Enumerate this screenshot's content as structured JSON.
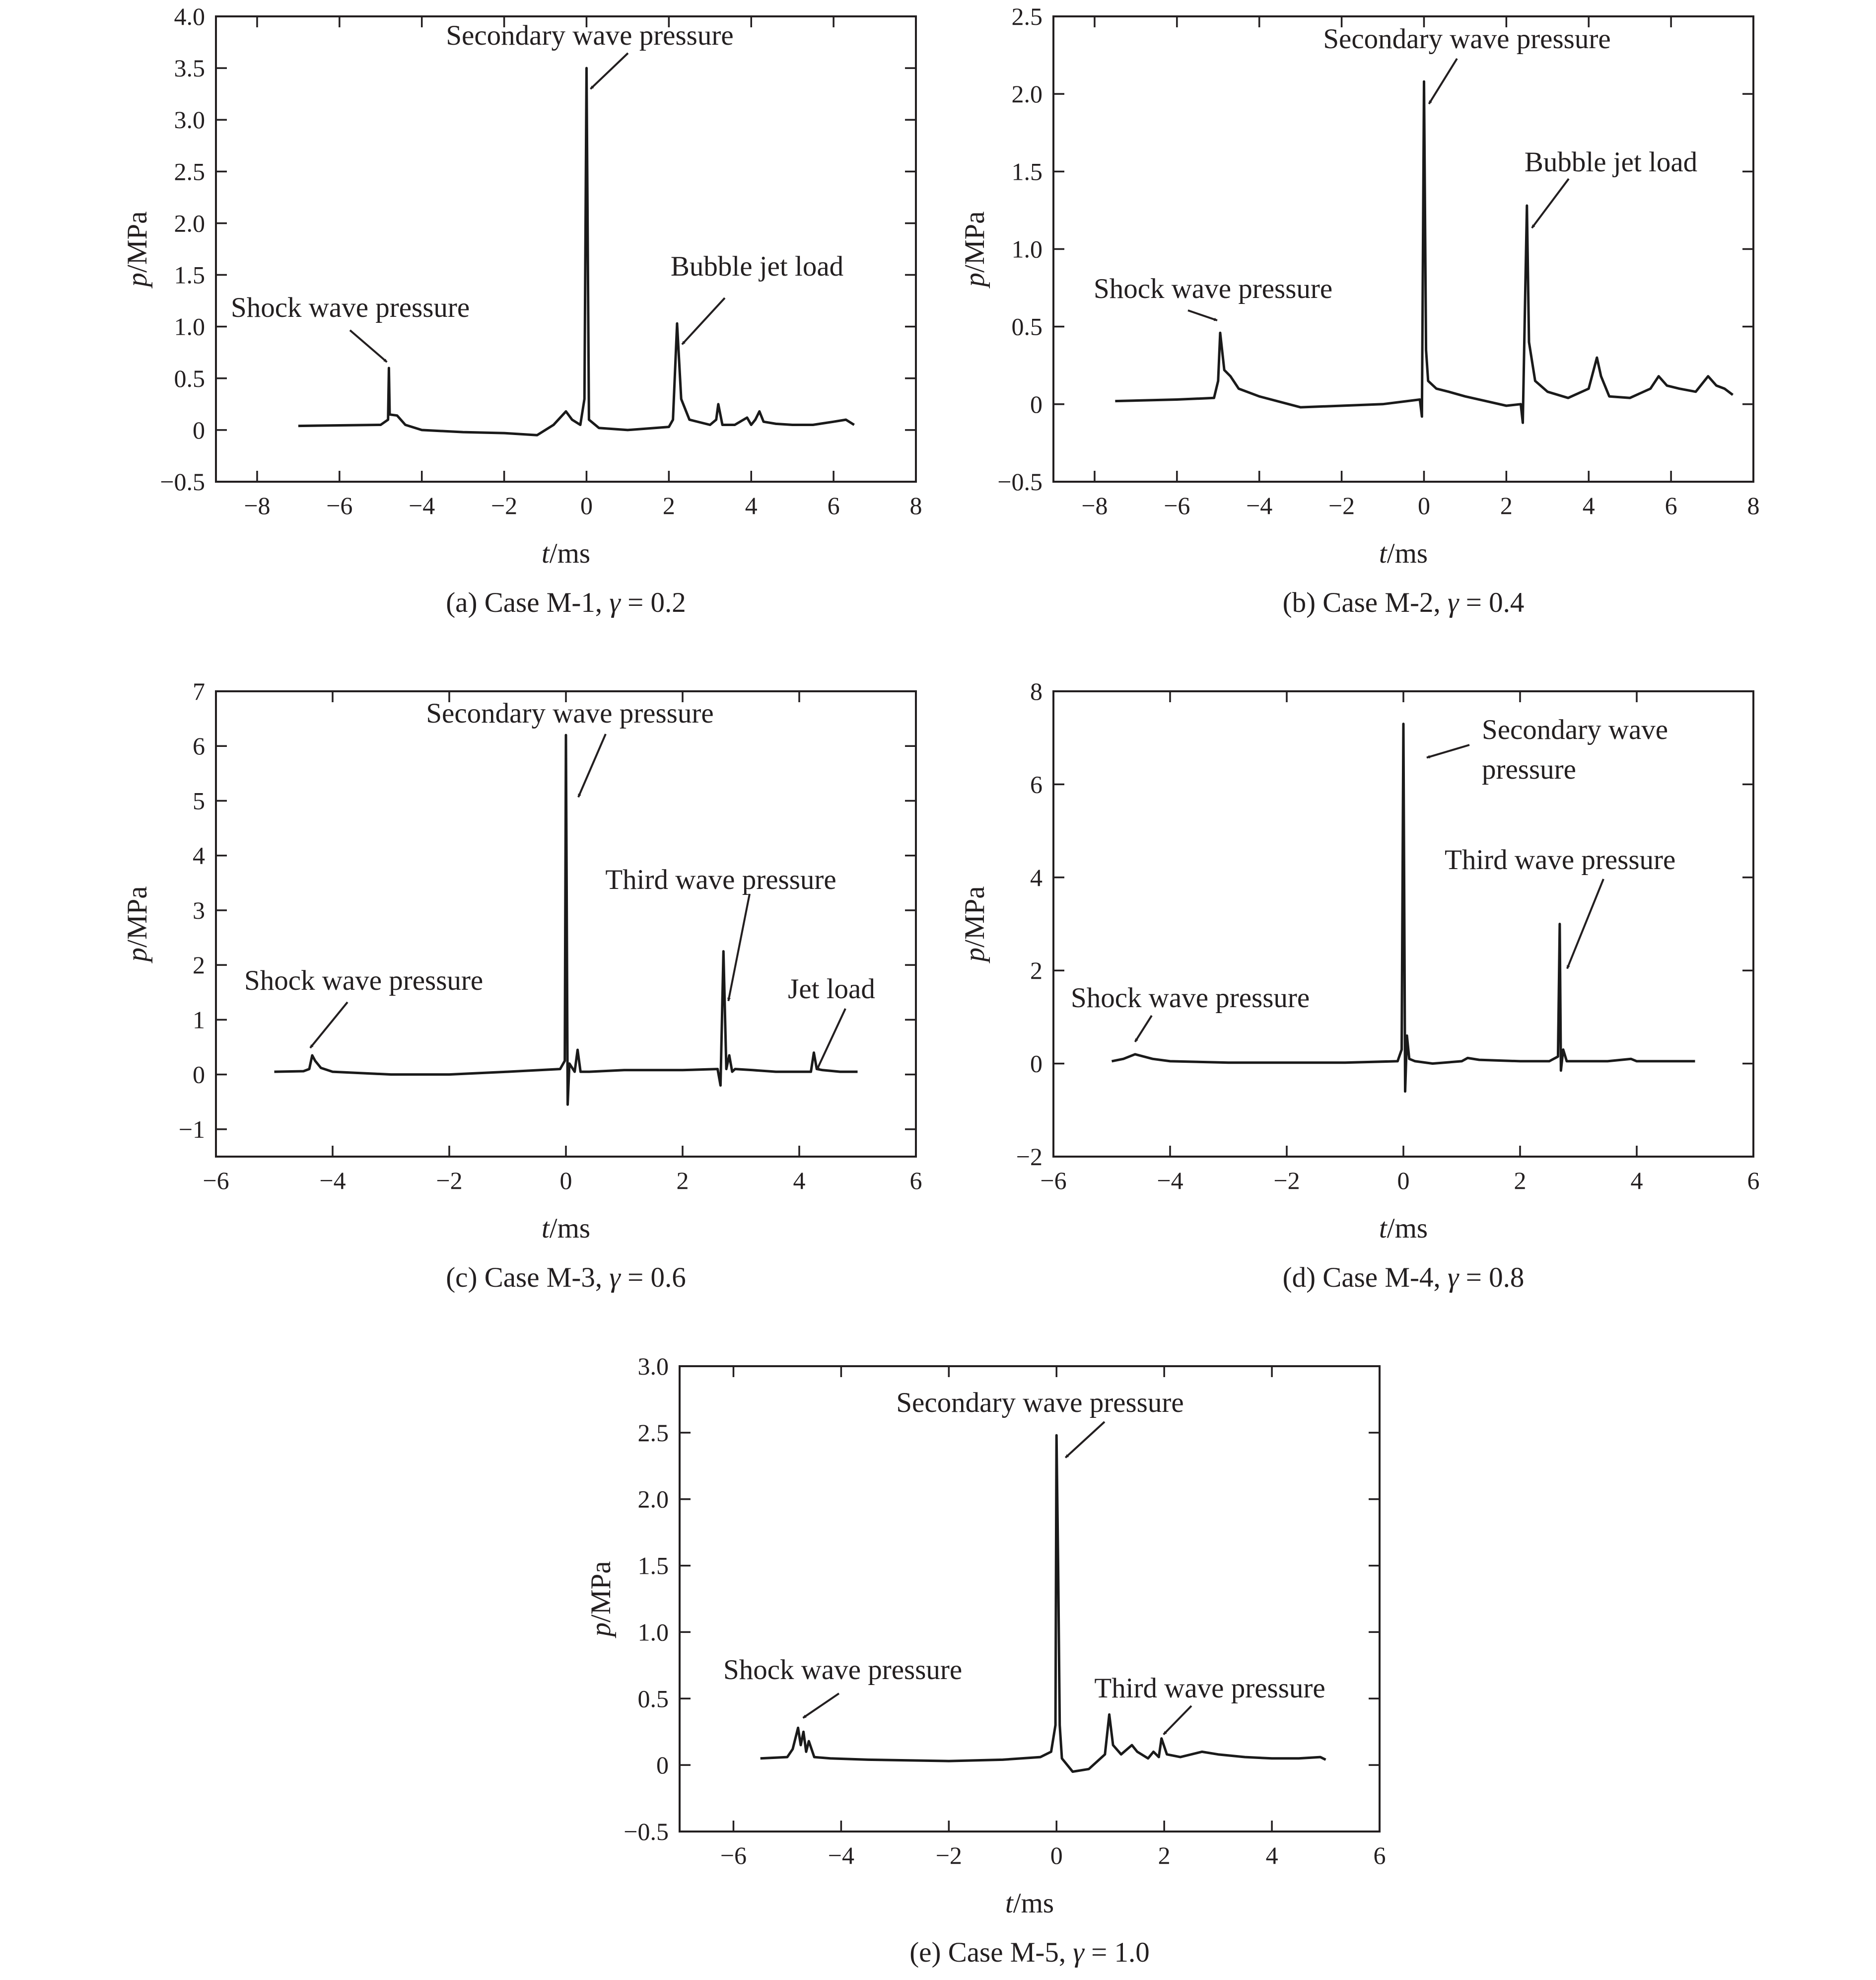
{
  "chart_data": [
    {
      "type": "line",
      "caption": "(a) Case M-1, γ = 0.2",
      "caption_parts": [
        "(a) Case M-1, ",
        "γ",
        " = 0.2"
      ],
      "xlabel_parts": [
        "t",
        "/ms"
      ],
      "ylabel_parts": [
        "p",
        "/MPa"
      ],
      "xlim": [
        -9,
        8
      ],
      "ylim": [
        -0.5,
        4.0
      ],
      "xticks": [
        -8,
        -6,
        -4,
        -2,
        0,
        2,
        4,
        6,
        8
      ],
      "xtick_labels": [
        "−8",
        "−6",
        "−4",
        "−2",
        "0",
        "2",
        "4",
        "6",
        "8"
      ],
      "yticks": [
        -0.5,
        0,
        0.5,
        1.0,
        1.5,
        2.0,
        2.5,
        3.0,
        3.5,
        4.0
      ],
      "ytick_labels": [
        "−0.5",
        "0",
        "0.5",
        "1.0",
        "1.5",
        "2.0",
        "2.5",
        "3.0",
        "3.5",
        "4.0"
      ],
      "series": [
        {
          "x": [
            -7.0,
            -5.0,
            -4.82,
            -4.8,
            -4.78,
            -4.6,
            -4.4,
            -4.0,
            -3.0,
            -2.0,
            -1.2,
            -0.8,
            -0.5,
            -0.35,
            -0.15,
            -0.05,
            0.0,
            0.06,
            0.3,
            1.0,
            2.0,
            2.1,
            2.2,
            2.3,
            2.5,
            3.0,
            3.15,
            3.2,
            3.3,
            3.6,
            3.9,
            4.0,
            4.1,
            4.2,
            4.3,
            4.6,
            5.0,
            5.5,
            6.0,
            6.3,
            6.5
          ],
          "y": [
            0.04,
            0.05,
            0.1,
            0.6,
            0.15,
            0.14,
            0.05,
            0.0,
            -0.02,
            -0.03,
            -0.05,
            0.05,
            0.18,
            0.1,
            0.05,
            0.3,
            3.5,
            0.1,
            0.02,
            0.0,
            0.03,
            0.1,
            1.03,
            0.3,
            0.1,
            0.05,
            0.1,
            0.25,
            0.05,
            0.05,
            0.12,
            0.05,
            0.1,
            0.18,
            0.08,
            0.06,
            0.05,
            0.05,
            0.08,
            0.1,
            0.05
          ]
        }
      ],
      "annotations": [
        {
          "text": "Shock wave pressure",
          "x": -4.8,
          "y": 0.6
        },
        {
          "text": "Secondary wave pressure",
          "x": 0.0,
          "y": 3.5
        },
        {
          "text": "Bubble jet load",
          "x": 2.2,
          "y": 1.03
        }
      ]
    },
    {
      "type": "line",
      "caption": "(b) Case M-2, γ = 0.4",
      "caption_parts": [
        "(b) Case M-2, ",
        "γ",
        " = 0.4"
      ],
      "xlabel_parts": [
        "t",
        "/ms"
      ],
      "ylabel_parts": [
        "p",
        "/MPa"
      ],
      "xlim": [
        -9,
        8
      ],
      "ylim": [
        -0.5,
        2.5
      ],
      "xticks": [
        -8,
        -6,
        -4,
        -2,
        0,
        2,
        4,
        6,
        8
      ],
      "xtick_labels": [
        "−8",
        "−6",
        "−4",
        "−2",
        "0",
        "2",
        "4",
        "6",
        "8"
      ],
      "yticks": [
        -0.5,
        0,
        0.5,
        1.0,
        1.5,
        2.0,
        2.5
      ],
      "ytick_labels": [
        "−0.5",
        "0",
        "0.5",
        "1.0",
        "1.5",
        "2.0",
        "2.5"
      ],
      "series": [
        {
          "x": [
            -7.5,
            -6.0,
            -5.1,
            -5.0,
            -4.95,
            -4.85,
            -4.7,
            -4.5,
            -4.0,
            -3.0,
            -2.0,
            -1.0,
            -0.1,
            -0.05,
            0.0,
            0.05,
            0.1,
            0.3,
            0.6,
            1.0,
            1.5,
            2.0,
            2.35,
            2.4,
            2.45,
            2.5,
            2.55,
            2.7,
            3.0,
            3.5,
            4.0,
            4.2,
            4.3,
            4.5,
            5.0,
            5.5,
            5.7,
            5.9,
            6.2,
            6.6,
            6.9,
            7.1,
            7.3,
            7.5
          ],
          "y": [
            0.02,
            0.03,
            0.04,
            0.15,
            0.46,
            0.22,
            0.18,
            0.1,
            0.05,
            -0.02,
            -0.01,
            0.0,
            0.03,
            -0.08,
            2.08,
            0.35,
            0.15,
            0.1,
            0.08,
            0.05,
            0.02,
            -0.01,
            0.0,
            -0.12,
            0.6,
            1.28,
            0.4,
            0.15,
            0.08,
            0.04,
            0.1,
            0.3,
            0.18,
            0.05,
            0.04,
            0.1,
            0.18,
            0.12,
            0.1,
            0.08,
            0.18,
            0.12,
            0.1,
            0.06
          ]
        }
      ],
      "annotations": [
        {
          "text": "Shock wave pressure",
          "x": -4.95,
          "y": 0.46
        },
        {
          "text": "Secondary wave pressure",
          "x": 0.0,
          "y": 2.08
        },
        {
          "text": "Bubble jet load",
          "x": 2.5,
          "y": 1.28
        }
      ]
    },
    {
      "type": "line",
      "caption": "(c) Case M-3, γ = 0.6",
      "caption_parts": [
        "(c) Case M-3, ",
        "γ",
        " = 0.6"
      ],
      "xlabel_parts": [
        "t",
        "/ms"
      ],
      "ylabel_parts": [
        "p",
        "/MPa"
      ],
      "xlim": [
        -6,
        6
      ],
      "ylim": [
        -1.5,
        7
      ],
      "xticks": [
        -6,
        -4,
        -2,
        0,
        2,
        4,
        6
      ],
      "xtick_labels": [
        "−6",
        "−4",
        "−2",
        "0",
        "2",
        "4",
        "6"
      ],
      "yticks": [
        -1,
        0,
        1,
        2,
        3,
        4,
        5,
        6,
        7
      ],
      "ytick_labels": [
        "−1",
        "0",
        "1",
        "2",
        "3",
        "4",
        "5",
        "6",
        "7"
      ],
      "series": [
        {
          "x": [
            -5.0,
            -4.5,
            -4.4,
            -4.35,
            -4.3,
            -4.2,
            -4.0,
            -3.0,
            -2.0,
            -1.0,
            -0.1,
            -0.02,
            0.0,
            0.03,
            0.06,
            0.15,
            0.2,
            0.25,
            0.4,
            1.0,
            2.0,
            2.6,
            2.65,
            2.7,
            2.75,
            2.8,
            2.85,
            2.9,
            3.2,
            3.6,
            4.0,
            4.2,
            4.25,
            4.3,
            4.4,
            4.7,
            5.0
          ],
          "y": [
            0.05,
            0.06,
            0.1,
            0.35,
            0.25,
            0.12,
            0.05,
            0.0,
            0.0,
            0.05,
            0.1,
            0.25,
            6.2,
            -0.55,
            0.2,
            0.05,
            0.45,
            0.05,
            0.05,
            0.08,
            0.08,
            0.1,
            -0.2,
            2.25,
            0.1,
            0.35,
            0.05,
            0.1,
            0.08,
            0.05,
            0.05,
            0.05,
            0.4,
            0.1,
            0.08,
            0.05,
            0.05
          ]
        }
      ],
      "annotations": [
        {
          "text": "Shock wave pressure",
          "x": -4.35,
          "y": 0.35
        },
        {
          "text": "Secondary wave pressure",
          "x": 0.0,
          "y": 6.2
        },
        {
          "text": "Third wave pressure",
          "x": 2.7,
          "y": 2.25
        },
        {
          "text": "Jet load",
          "x": 4.25,
          "y": 0.4
        }
      ]
    },
    {
      "type": "line",
      "caption": "(d) Case M-4, γ = 0.8",
      "caption_parts": [
        "(d) Case M-4, ",
        "γ",
        " = 0.8"
      ],
      "xlabel_parts": [
        "t",
        "/ms"
      ],
      "ylabel_parts": [
        "p",
        "/MPa"
      ],
      "xlim": [
        -6,
        6
      ],
      "ylim": [
        -2,
        8
      ],
      "xticks": [
        -6,
        -4,
        -2,
        0,
        2,
        4,
        6
      ],
      "xtick_labels": [
        "−6",
        "−4",
        "−2",
        "0",
        "2",
        "4",
        "6"
      ],
      "yticks": [
        -2,
        0,
        2,
        4,
        6,
        8
      ],
      "ytick_labels": [
        "−2",
        "0",
        "2",
        "4",
        "6",
        "8"
      ],
      "series": [
        {
          "x": [
            -5.0,
            -4.8,
            -4.6,
            -4.3,
            -4.0,
            -3.0,
            -2.0,
            -1.0,
            -0.1,
            -0.03,
            0.0,
            0.03,
            0.06,
            0.1,
            0.2,
            0.5,
            1.0,
            1.1,
            1.3,
            2.0,
            2.5,
            2.65,
            2.68,
            2.7,
            2.74,
            2.8,
            3.0,
            3.5,
            3.9,
            4.0,
            4.5,
            5.0
          ],
          "y": [
            0.05,
            0.1,
            0.2,
            0.1,
            0.05,
            0.02,
            0.02,
            0.02,
            0.05,
            0.3,
            7.3,
            -0.6,
            0.6,
            0.1,
            0.05,
            0.0,
            0.05,
            0.12,
            0.08,
            0.05,
            0.05,
            0.15,
            3.0,
            -0.15,
            0.3,
            0.05,
            0.05,
            0.05,
            0.1,
            0.05,
            0.05,
            0.05
          ]
        }
      ],
      "annotations": [
        {
          "text": "Shock wave pressure",
          "x": -4.6,
          "y": 0.2
        },
        {
          "text": "Secondary wave pressure",
          "lines": [
            "Secondary wave",
            "pressure"
          ],
          "x": 0.0,
          "y": 7.3
        },
        {
          "text": "Third wave pressure",
          "x": 2.68,
          "y": 3.0
        }
      ]
    },
    {
      "type": "line",
      "caption": "(e) Case M-5, γ = 1.0",
      "caption_parts": [
        "(e) Case M-5, ",
        "γ",
        " = 1.0"
      ],
      "xlabel_parts": [
        "t",
        "/ms"
      ],
      "ylabel_parts": [
        "p",
        "/MPa"
      ],
      "xlim": [
        -7,
        6
      ],
      "ylim": [
        -0.5,
        3.0
      ],
      "xticks": [
        -6,
        -4,
        -2,
        0,
        2,
        4,
        6
      ],
      "xtick_labels": [
        "−6",
        "−4",
        "−2",
        "0",
        "2",
        "4",
        "6"
      ],
      "yticks": [
        -0.5,
        0,
        0.5,
        1.0,
        1.5,
        2.0,
        2.5,
        3.0
      ],
      "ytick_labels": [
        "−0.5",
        "0",
        "0.5",
        "1.0",
        "1.5",
        "2.0",
        "2.5",
        "3.0"
      ],
      "series": [
        {
          "x": [
            -5.5,
            -5.0,
            -4.9,
            -4.8,
            -4.75,
            -4.7,
            -4.65,
            -4.6,
            -4.5,
            -4.2,
            -3.5,
            -2.0,
            -1.0,
            -0.3,
            -0.1,
            -0.02,
            0.0,
            0.03,
            0.06,
            0.1,
            0.3,
            0.6,
            0.9,
            0.98,
            1.05,
            1.2,
            1.4,
            1.5,
            1.7,
            1.8,
            1.9,
            1.95,
            2.05,
            2.3,
            2.7,
            3.0,
            3.5,
            4.0,
            4.5,
            4.9,
            5.0
          ],
          "y": [
            0.05,
            0.06,
            0.12,
            0.28,
            0.15,
            0.25,
            0.1,
            0.18,
            0.06,
            0.05,
            0.04,
            0.03,
            0.04,
            0.06,
            0.1,
            0.3,
            2.48,
            1.5,
            0.3,
            0.05,
            -0.05,
            -0.03,
            0.08,
            0.38,
            0.15,
            0.08,
            0.15,
            0.1,
            0.05,
            0.1,
            0.06,
            0.2,
            0.08,
            0.06,
            0.1,
            0.08,
            0.06,
            0.05,
            0.05,
            0.06,
            0.04
          ]
        }
      ],
      "annotations": [
        {
          "text": "Shock wave pressure",
          "x": -4.8,
          "y": 0.28
        },
        {
          "text": "Secondary wave pressure",
          "x": 0.0,
          "y": 2.48
        },
        {
          "text": "Third wave pressure",
          "x": 1.95,
          "y": 0.2
        }
      ]
    }
  ]
}
